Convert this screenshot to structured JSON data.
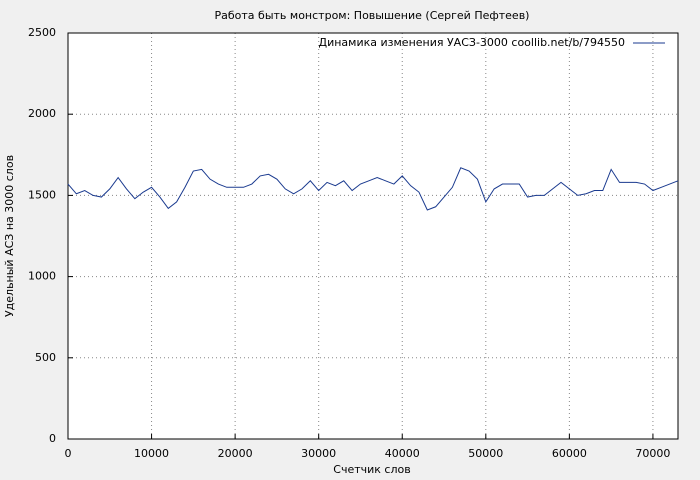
{
  "chart_data": {
    "type": "line",
    "title": "Работа быть монстром: Повышение (Сергей Пефтеев)",
    "x_label": "Счетчик слов",
    "y_label": "Удельный АСЗ на 3000 слов",
    "legend_position": "upper right",
    "grid": true,
    "xlim": [
      0,
      73000
    ],
    "ylim": [
      0,
      2500
    ],
    "xticks": [
      0,
      10000,
      20000,
      30000,
      40000,
      50000,
      60000,
      70000
    ],
    "yticks": [
      0,
      500,
      1000,
      1500,
      2000,
      2500
    ],
    "x": [
      0,
      1000,
      2000,
      3000,
      4000,
      5000,
      6000,
      7000,
      8000,
      9000,
      10000,
      11000,
      12000,
      13000,
      14000,
      15000,
      16000,
      17000,
      18000,
      19000,
      20000,
      21000,
      22000,
      23000,
      24000,
      25000,
      26000,
      27000,
      28000,
      29000,
      30000,
      31000,
      32000,
      33000,
      34000,
      35000,
      36000,
      37000,
      38000,
      39000,
      40000,
      41000,
      42000,
      43000,
      44000,
      45000,
      46000,
      47000,
      48000,
      49000,
      50000,
      51000,
      52000,
      53000,
      54000,
      55000,
      56000,
      57000,
      58000,
      59000,
      60000,
      61000,
      62000,
      63000,
      64000,
      65000,
      66000,
      67000,
      68000,
      69000,
      70000,
      71000,
      72000,
      73000
    ],
    "series": [
      {
        "name": "Динамика изменения УАСЗ-3000 coollib.net/b/794550",
        "color": "#1a3a8f",
        "values": [
          1570,
          1510,
          1530,
          1500,
          1490,
          1540,
          1610,
          1540,
          1480,
          1520,
          1550,
          1490,
          1420,
          1460,
          1550,
          1650,
          1660,
          1600,
          1570,
          1550,
          1550,
          1550,
          1570,
          1620,
          1630,
          1600,
          1540,
          1510,
          1540,
          1590,
          1530,
          1580,
          1560,
          1590,
          1530,
          1570,
          1590,
          1610,
          1590,
          1570,
          1620,
          1560,
          1520,
          1410,
          1430,
          1490,
          1550,
          1670,
          1650,
          1600,
          1460,
          1540,
          1570,
          1570,
          1570,
          1490,
          1500,
          1500,
          1540,
          1580,
          1540,
          1500,
          1510,
          1530,
          1530,
          1660,
          1580,
          1580,
          1580,
          1570,
          1530,
          1550,
          1570,
          1590
        ]
      }
    ]
  }
}
